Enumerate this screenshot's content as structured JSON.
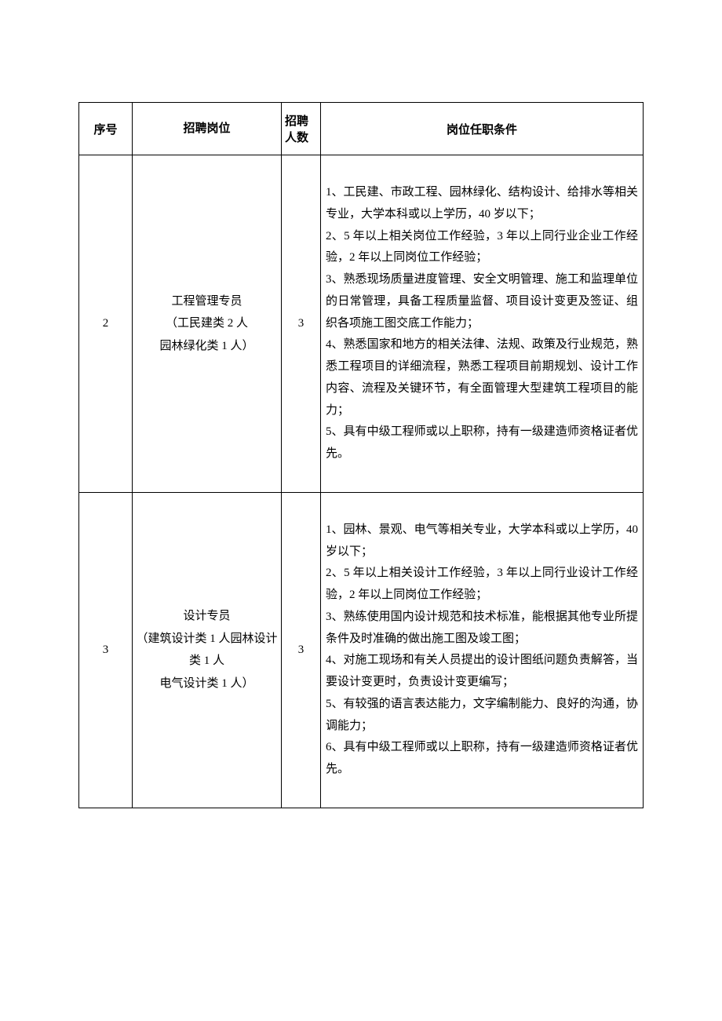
{
  "headers": {
    "seq": "序号",
    "position": "招聘岗位",
    "count": "招聘人数",
    "requirements": "岗位任职条件"
  },
  "rows": [
    {
      "seq": "2",
      "position_line1": "工程管理专员",
      "position_line2": "（工民建类 2 人",
      "position_line3": "园林绿化类 1 人）",
      "count": "3",
      "requirements": "1、工民建、市政工程、园林绿化、结构设计、给排水等相关专业，大学本科或以上学历，40 岁以下；\n2、5 年以上相关岗位工作经验，3 年以上同行业企业工作经验，2 年以上同岗位工作经验；\n3、熟悉现场质量进度管理、安全文明管理、施工和监理单位的日常管理，具备工程质量监督、项目设计变更及签证、组织各项施工图交底工作能力；\n4、熟悉国家和地方的相关法律、法规、政策及行业规范，熟悉工程项目的详细流程，熟悉工程项目前期规划、设计工作内容、流程及关键环节，有全面管理大型建筑工程项目的能力；\n5、具有中级工程师或以上职称，持有一级建造师资格证者优先。"
    },
    {
      "seq": "3",
      "position_line1": "设计专员",
      "position_line2": "（建筑设计类 1 人园林设计类 1 人",
      "position_line3": "电气设计类 1 人）",
      "count": "3",
      "requirements": "1、园林、景观、电气等相关专业，大学本科或以上学历，40 岁以下；\n2、5 年以上相关设计工作经验，3 年以上同行业设计工作经验，2 年以上同岗位工作经验；\n3、熟练使用国内设计规范和技术标准，能根据其他专业所提条件及时准确的做出施工图及竣工图；\n4、对施工现场和有关人员提出的设计图纸问题负责解答，当要设计变更时，负责设计变更编写；\n5、有较强的语言表达能力，文字编制能力、良好的沟通，协调能力；\n6、具有中级工程师或以上职称，持有一级建造师资格证者优先。"
    }
  ]
}
